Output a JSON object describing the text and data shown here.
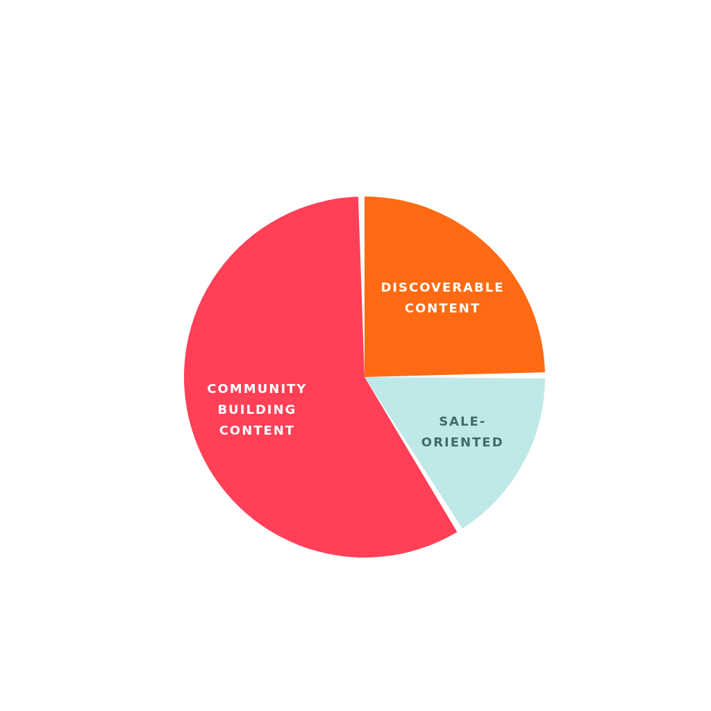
{
  "chart_data": {
    "type": "pie",
    "categories": [
      "DISCOVERABLE CONTENT",
      "SALE-ORIENTED",
      "COMMUNITY BUILDING CONTENT"
    ],
    "values": [
      25,
      16,
      59
    ],
    "colors": [
      "#ff6a13",
      "#bfe8e8",
      "#ff4057"
    ],
    "legend": false
  }
}
